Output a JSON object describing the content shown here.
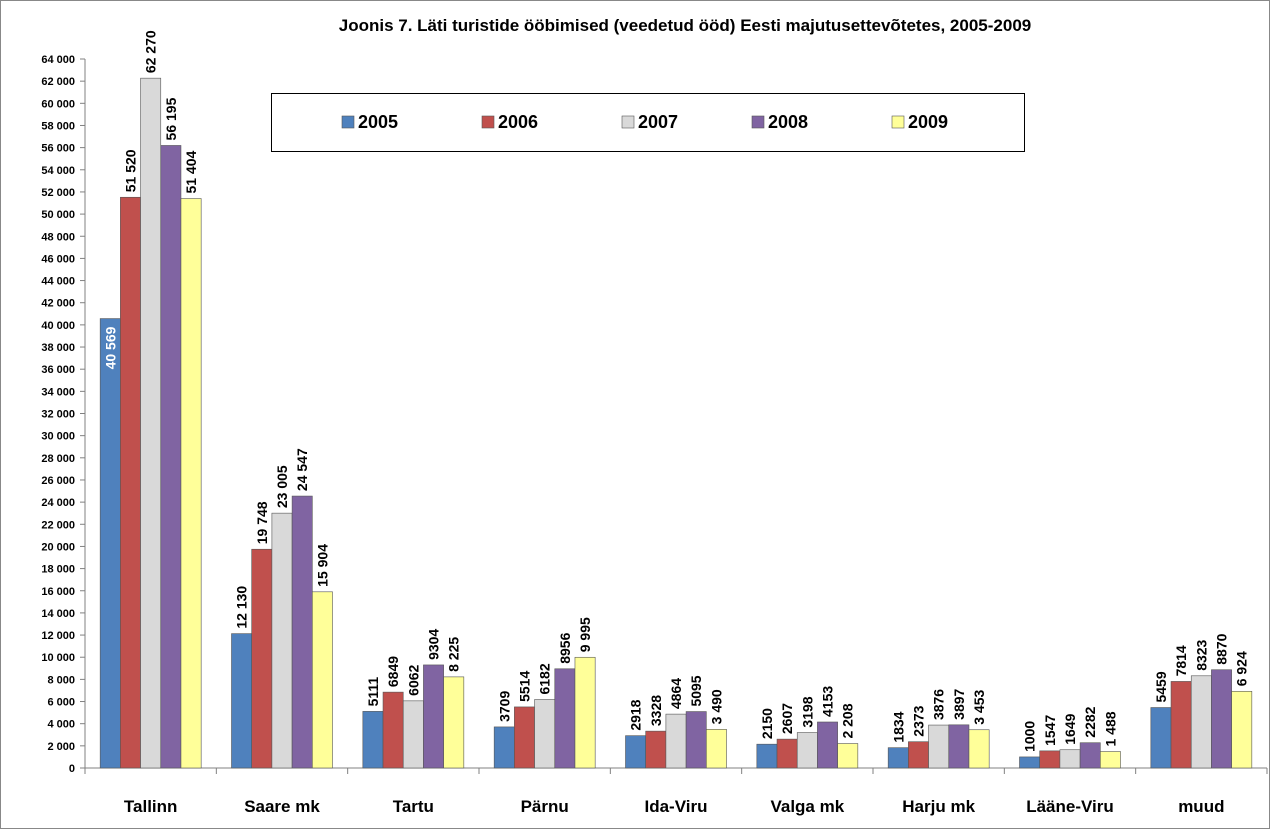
{
  "chart_data": {
    "type": "bar",
    "title": "Joonis 7. Läti turistide ööbimised (veedetud ööd) Eesti majutusettevõtetes, 2005-2009",
    "xlabel": "",
    "ylabel": "",
    "ylim": [
      0,
      64000
    ],
    "ytick_step": 2000,
    "grid": false,
    "legend_position": "top-center",
    "categories": [
      "Tallinn",
      "Saare mk",
      "Tartu",
      "Pärnu",
      "Ida-Viru",
      "Valga mk",
      "Harju mk",
      "Lääne-Viru",
      "muud"
    ],
    "yticks": [
      "0",
      "2 000",
      "4 000",
      "6 000",
      "8 000",
      "10 000",
      "12 000",
      "14 000",
      "16 000",
      "18 000",
      "20 000",
      "22 000",
      "24 000",
      "26 000",
      "28 000",
      "30 000",
      "32 000",
      "34 000",
      "36 000",
      "38 000",
      "40 000",
      "42 000",
      "44 000",
      "46 000",
      "48 000",
      "50 000",
      "52 000",
      "54 000",
      "56 000",
      "58 000",
      "60 000",
      "62 000",
      "64 000"
    ],
    "series": [
      {
        "name": "2005",
        "color": "#4F81BD",
        "values": [
          40569,
          12130,
          5111,
          3709,
          2918,
          2150,
          1834,
          1000,
          5459
        ],
        "labels": [
          "40 569",
          "12 130",
          "5111",
          "3709",
          "2918",
          "2150",
          "1834",
          "1000",
          "5459"
        ]
      },
      {
        "name": "2006",
        "color": "#C0504D",
        "values": [
          51520,
          19748,
          6849,
          5514,
          3328,
          2607,
          2373,
          1547,
          7814
        ],
        "labels": [
          "51 520",
          "19 748",
          "6849",
          "5514",
          "3328",
          "2607",
          "2373",
          "1547",
          "7814"
        ]
      },
      {
        "name": "2007",
        "color": "#D9D9D9",
        "values": [
          62270,
          23005,
          6062,
          6182,
          4864,
          3198,
          3876,
          1649,
          8323
        ],
        "labels": [
          "62 270",
          "23 005",
          "6062",
          "6182",
          "4864",
          "3198",
          "3876",
          "1649",
          "8323"
        ]
      },
      {
        "name": "2008",
        "color": "#8064A2",
        "values": [
          56195,
          24547,
          9304,
          8956,
          5095,
          4153,
          3897,
          2282,
          8870
        ],
        "labels": [
          "56 195",
          "24 547",
          "9304",
          "8956",
          "5095",
          "4153",
          "3897",
          "2282",
          "8870"
        ]
      },
      {
        "name": "2009",
        "color": "#FFFF99",
        "values": [
          51404,
          15904,
          8225,
          9995,
          3490,
          2208,
          3453,
          1488,
          6924
        ],
        "labels": [
          "51 404",
          "15 904",
          "8 225",
          "9 995",
          "3 490",
          "2 208",
          "3 453",
          "1 488",
          "6 924"
        ]
      }
    ]
  }
}
